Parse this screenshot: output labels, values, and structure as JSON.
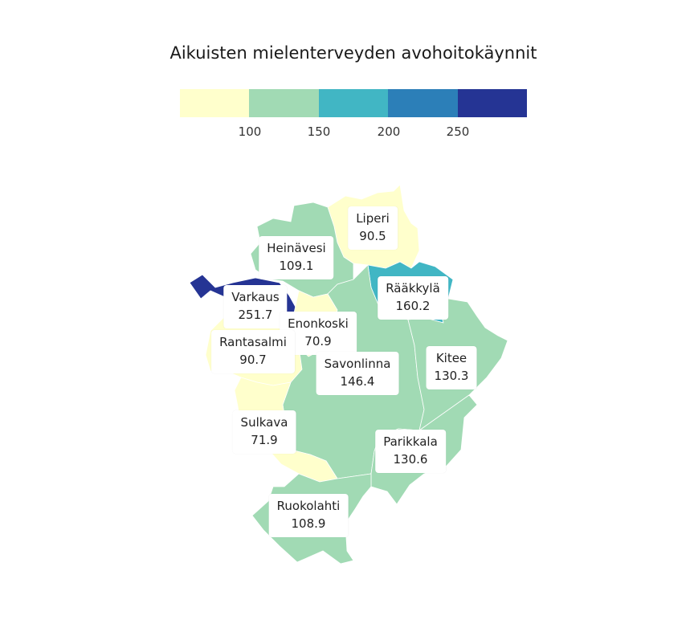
{
  "title": "Aikuisten mielenterveyden avohoitokäynnit",
  "legend": {
    "colors": [
      "#ffffcc",
      "#a1dab4",
      "#41b6c4",
      "#2c7fb8",
      "#253494"
    ],
    "ticks": [
      "100",
      "150",
      "200",
      "250"
    ]
  },
  "regions": [
    {
      "name": "Liperi",
      "value": "90.5",
      "color": "#ffffcc"
    },
    {
      "name": "Heinävesi",
      "value": "109.1",
      "color": "#a1dab4"
    },
    {
      "name": "Rääkkylä",
      "value": "160.2",
      "color": "#41b6c4"
    },
    {
      "name": "Varkaus",
      "value": "251.7",
      "color": "#253494"
    },
    {
      "name": "Enonkoski",
      "value": "70.9",
      "color": "#ffffcc"
    },
    {
      "name": "Rantasalmi",
      "value": "90.7",
      "color": "#ffffcc"
    },
    {
      "name": "Savonlinna",
      "value": "146.4",
      "color": "#a1dab4"
    },
    {
      "name": "Kitee",
      "value": "130.3",
      "color": "#a1dab4"
    },
    {
      "name": "Sulkava",
      "value": "71.9",
      "color": "#ffffcc"
    },
    {
      "name": "Parikkala",
      "value": "130.6",
      "color": "#a1dab4"
    },
    {
      "name": "Ruokolahti",
      "value": "108.9",
      "color": "#a1dab4"
    }
  ]
}
